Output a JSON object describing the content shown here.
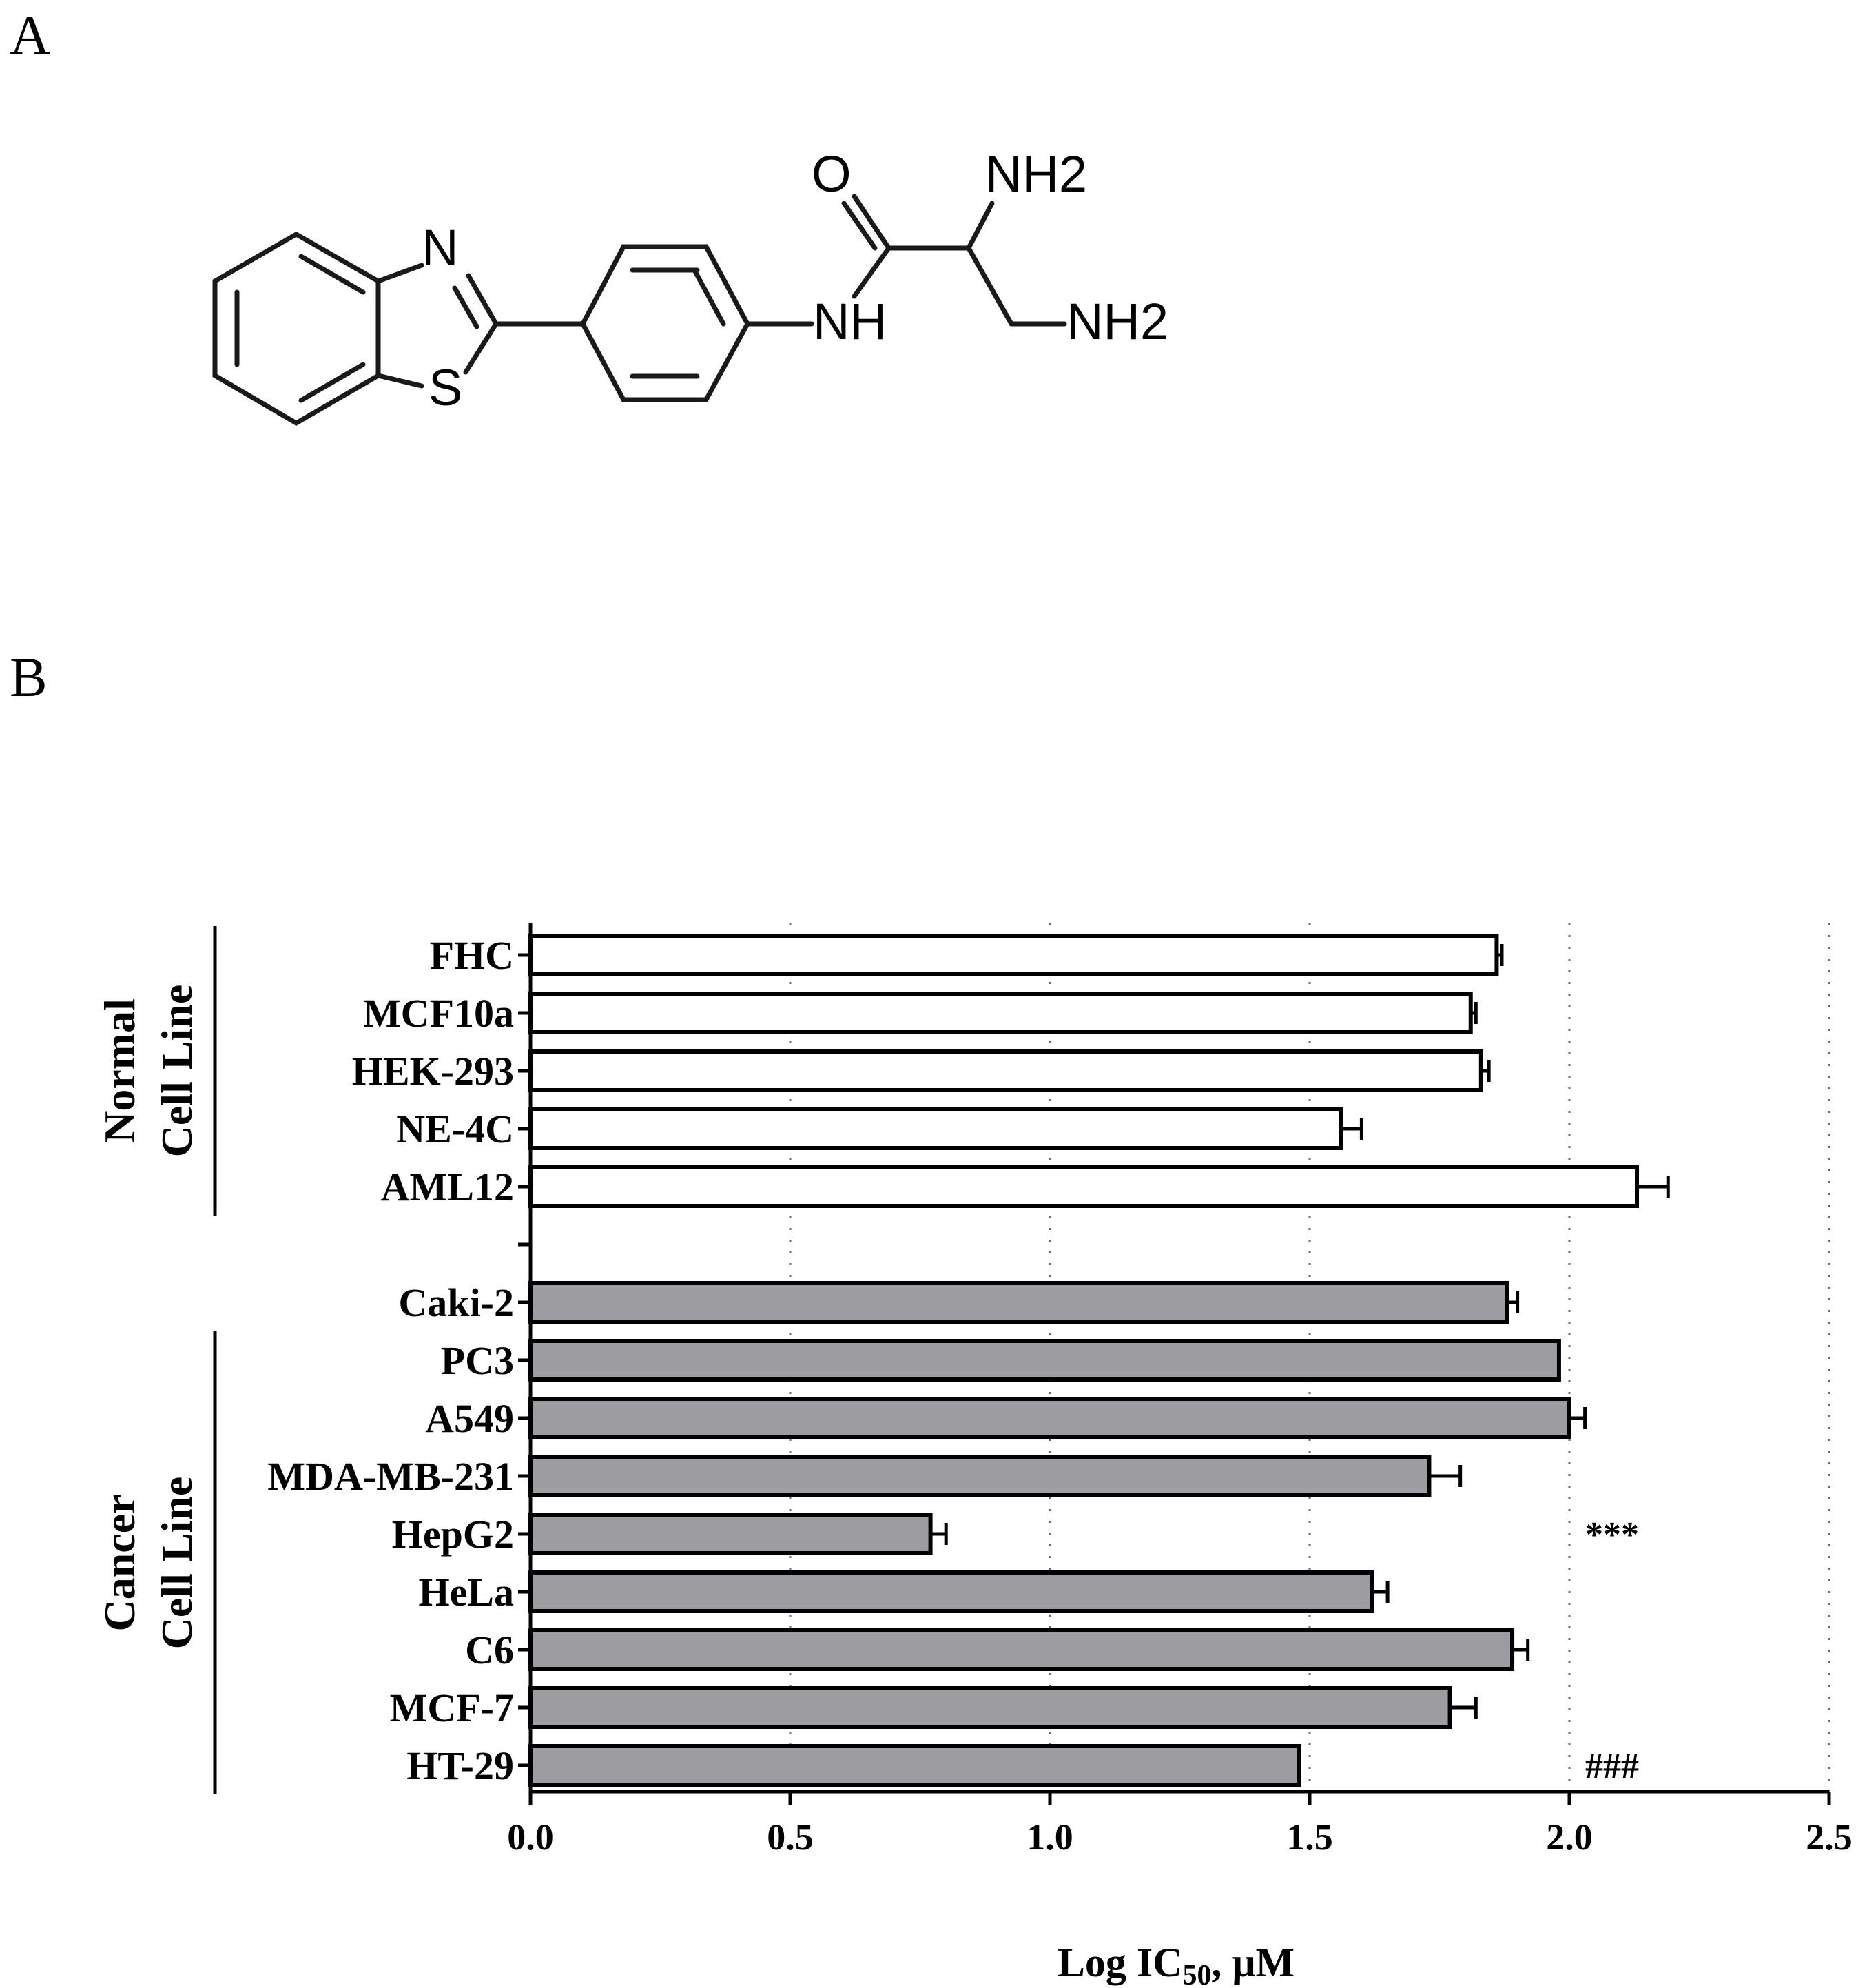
{
  "panels": {
    "a": "A",
    "b": "B"
  },
  "structure": {
    "atoms": {
      "n_thiazole": "N",
      "s_thiazole": "S",
      "nh_amide": "NH",
      "o_carbonyl": "O",
      "nh2_alpha": "NH2",
      "nh2_beta": "NH2"
    }
  },
  "chart_data": {
    "type": "bar",
    "orientation": "horizontal",
    "categories": [
      "FHC",
      "MCF10a",
      "HEK-293",
      "NE-4C",
      "AML12",
      "",
      "Caki-2",
      "PC3",
      "A549",
      "MDA-MB-231",
      "HepG2",
      "HeLa",
      "C6",
      "MCF-7",
      "HT-29"
    ],
    "values": [
      1.86,
      1.81,
      1.83,
      1.56,
      2.13,
      null,
      1.88,
      1.98,
      2.0,
      1.73,
      0.77,
      1.62,
      1.89,
      1.77,
      1.48
    ],
    "errors": [
      0.01,
      0.01,
      0.015,
      0.04,
      0.06,
      null,
      0.02,
      0.0,
      0.03,
      0.06,
      0.03,
      0.03,
      0.03,
      0.05,
      0.0
    ],
    "bar_colors": [
      "#ffffff",
      "#ffffff",
      "#ffffff",
      "#ffffff",
      "#ffffff",
      null,
      "#9d9da1",
      "#9d9da1",
      "#9d9da1",
      "#9d9da1",
      "#9d9da1",
      "#9d9da1",
      "#9d9da1",
      "#9d9da1",
      "#9d9da1"
    ],
    "xlim": [
      0,
      2.5
    ],
    "xticks": [
      0.0,
      0.5,
      1.0,
      1.5,
      2.0,
      2.5
    ],
    "xtick_labels": [
      "0.0",
      "0.5",
      "1.0",
      "1.5",
      "2.0",
      "2.5"
    ],
    "xlabel": {
      "main": "Log IC",
      "sub": "50",
      "tail": ", μM"
    },
    "grid": "vertical dotted",
    "groups": [
      {
        "line1": "Normal",
        "line2": "Cell Line",
        "categories": [
          "FHC",
          "MCF10a",
          "HEK-293",
          "NE-4C",
          "AML12"
        ]
      },
      {
        "line1": "Cancer",
        "line2": "Cell Line",
        "categories": [
          "PC3",
          "A549",
          "MDA-MB-231",
          "HepG2",
          "HeLa",
          "C6",
          "MCF-7",
          "HT-29"
        ]
      }
    ],
    "annotations": [
      {
        "category": "HepG2",
        "text": "***"
      },
      {
        "category": "HT-29",
        "text": "###"
      }
    ]
  }
}
